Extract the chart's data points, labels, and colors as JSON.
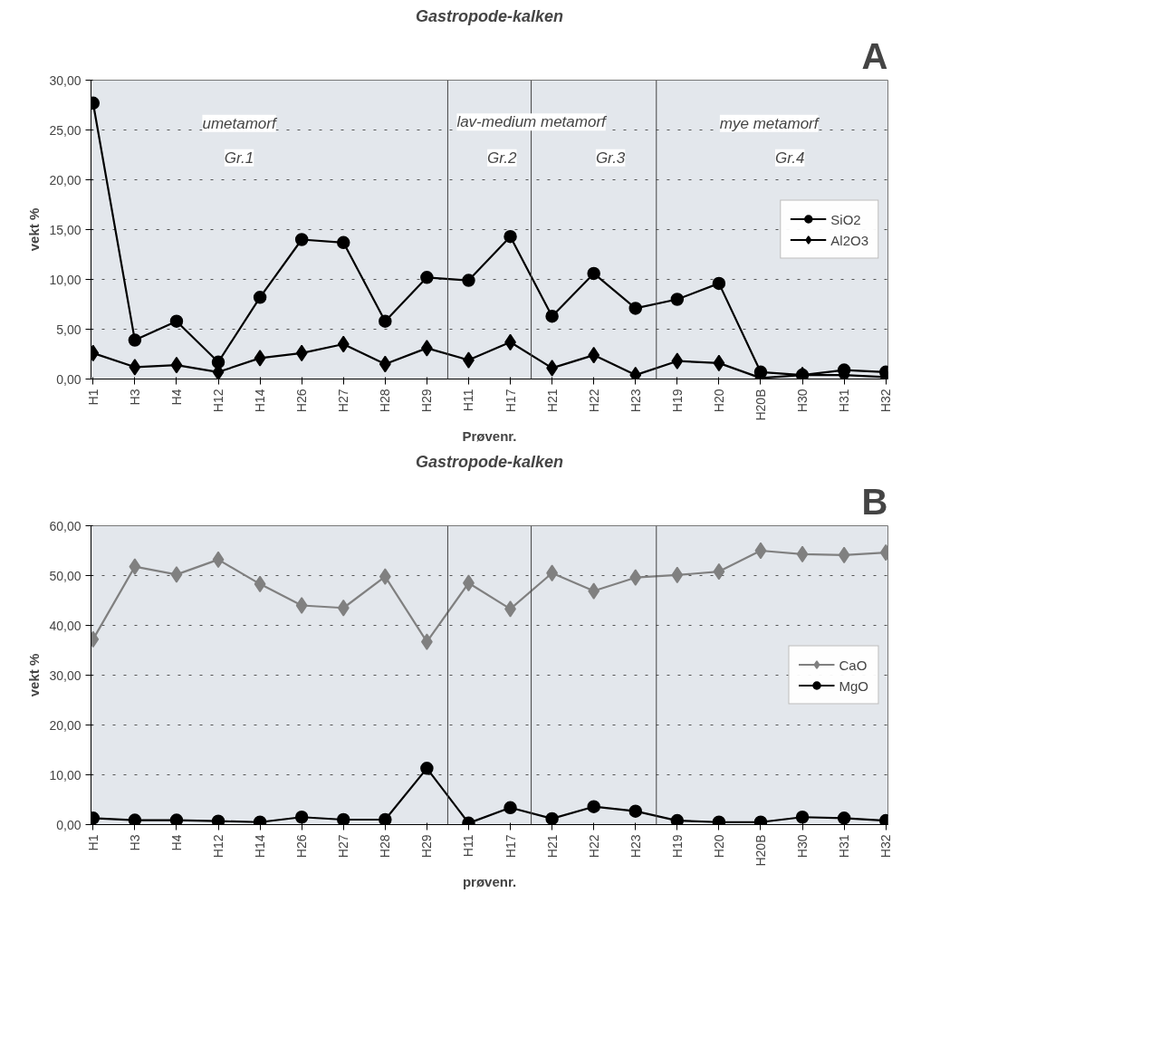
{
  "chart_data": [
    {
      "type": "line",
      "title": "Gastropode-kalken",
      "xlabel": "Prøvenr.",
      "ylabel": "vekt %",
      "categories": [
        "H1",
        "H3",
        "H4",
        "H12",
        "H14",
        "H26",
        "H27",
        "H28",
        "H29",
        "H11",
        "H17",
        "H21",
        "H22",
        "H23",
        "H19",
        "H20",
        "H20B",
        "H30",
        "H31",
        "H32"
      ],
      "series": [
        {
          "name": "SiO2",
          "color": "#000000",
          "marker": "circle",
          "values": [
            27.7,
            3.9,
            5.8,
            1.7,
            8.2,
            14.0,
            13.7,
            5.8,
            10.2,
            9.9,
            14.3,
            6.3,
            10.6,
            7.1,
            8.0,
            9.6,
            0.7,
            0.4,
            0.9,
            0.7
          ]
        },
        {
          "name": "Al2O3",
          "color": "#000000",
          "marker": "diamond",
          "values": [
            2.6,
            1.2,
            1.4,
            0.7,
            2.1,
            2.6,
            3.5,
            1.5,
            3.1,
            1.9,
            3.7,
            1.1,
            2.4,
            0.4,
            1.8,
            1.6,
            0.1,
            0.4,
            0.4,
            0.2
          ]
        }
      ],
      "ylim": [
        0,
        30
      ],
      "yticks": [
        {
          "value": 0,
          "label": "0,00"
        },
        {
          "value": 5,
          "label": "5,00"
        },
        {
          "value": 10,
          "label": "10,00"
        },
        {
          "value": 15,
          "label": "15,00"
        },
        {
          "value": 20,
          "label": "20,00"
        },
        {
          "value": 25,
          "label": "25,00"
        },
        {
          "value": 30,
          "label": "30,00"
        }
      ],
      "annotations": [
        "A",
        "umetamorf",
        "Gr.1",
        "lav-medium metamorf",
        "Gr.2",
        "Gr.3",
        "mye metamorf",
        "Gr.4"
      ],
      "grid": "y",
      "legend": "right",
      "line_style": "solid"
    },
    {
      "type": "line",
      "title": "Gastropode-kalken",
      "xlabel": "prøvenr.",
      "ylabel": "vekt %",
      "categories": [
        "H1",
        "H3",
        "H4",
        "H12",
        "H14",
        "H26",
        "H27",
        "H28",
        "H29",
        "H11",
        "H17",
        "H21",
        "H22",
        "H23",
        "H19",
        "H20",
        "H20B",
        "H30",
        "H31",
        "H32"
      ],
      "series": [
        {
          "name": "CaO",
          "color": "#808080",
          "marker": "diamond",
          "values": [
            37.2,
            51.8,
            50.2,
            53.2,
            48.3,
            44.0,
            43.5,
            49.8,
            36.7,
            48.5,
            43.3,
            50.5,
            46.9,
            49.6,
            50.1,
            50.8,
            55.0,
            54.3,
            54.1,
            54.6
          ]
        },
        {
          "name": "MgO",
          "color": "#000000",
          "marker": "circle",
          "values": [
            1.3,
            0.9,
            0.9,
            0.7,
            0.5,
            1.5,
            1.0,
            1.0,
            11.3,
            0.3,
            3.4,
            1.2,
            3.6,
            2.7,
            0.8,
            0.5,
            0.5,
            1.5,
            1.3,
            0.8
          ]
        }
      ],
      "ylim": [
        0,
        60
      ],
      "yticks": [
        {
          "value": 0,
          "label": "0,00"
        },
        {
          "value": 10,
          "label": "10,00"
        },
        {
          "value": 20,
          "label": "20,00"
        },
        {
          "value": 30,
          "label": "30,00"
        },
        {
          "value": 40,
          "label": "40,00"
        },
        {
          "value": 50,
          "label": "50,00"
        },
        {
          "value": 60,
          "label": "60,00"
        }
      ],
      "annotations": [
        "B"
      ],
      "grid": "y",
      "legend": "right",
      "line_style": "solid"
    }
  ]
}
